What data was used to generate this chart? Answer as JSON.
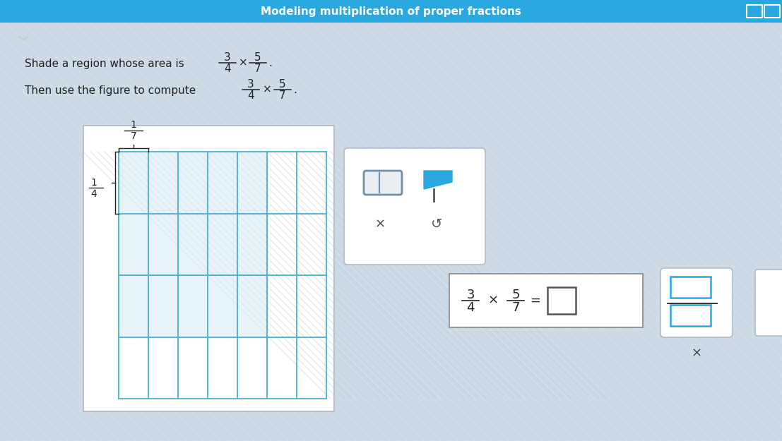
{
  "title": "Modeling multiplication of proper fractions",
  "title_color": "#ffffff",
  "title_bg": "#29a8e0",
  "bg_color": "#cdd9e5",
  "grid_rows": 4,
  "grid_cols": 7,
  "grid_color": "#4ab0d0",
  "shade_rows": 3,
  "shade_cols": 5,
  "shade_color": "#e8f4fa",
  "grid_line_lw": 1.3,
  "outer_card_color": "#f5f8fb",
  "tools_box_color": "#f0f5f8"
}
